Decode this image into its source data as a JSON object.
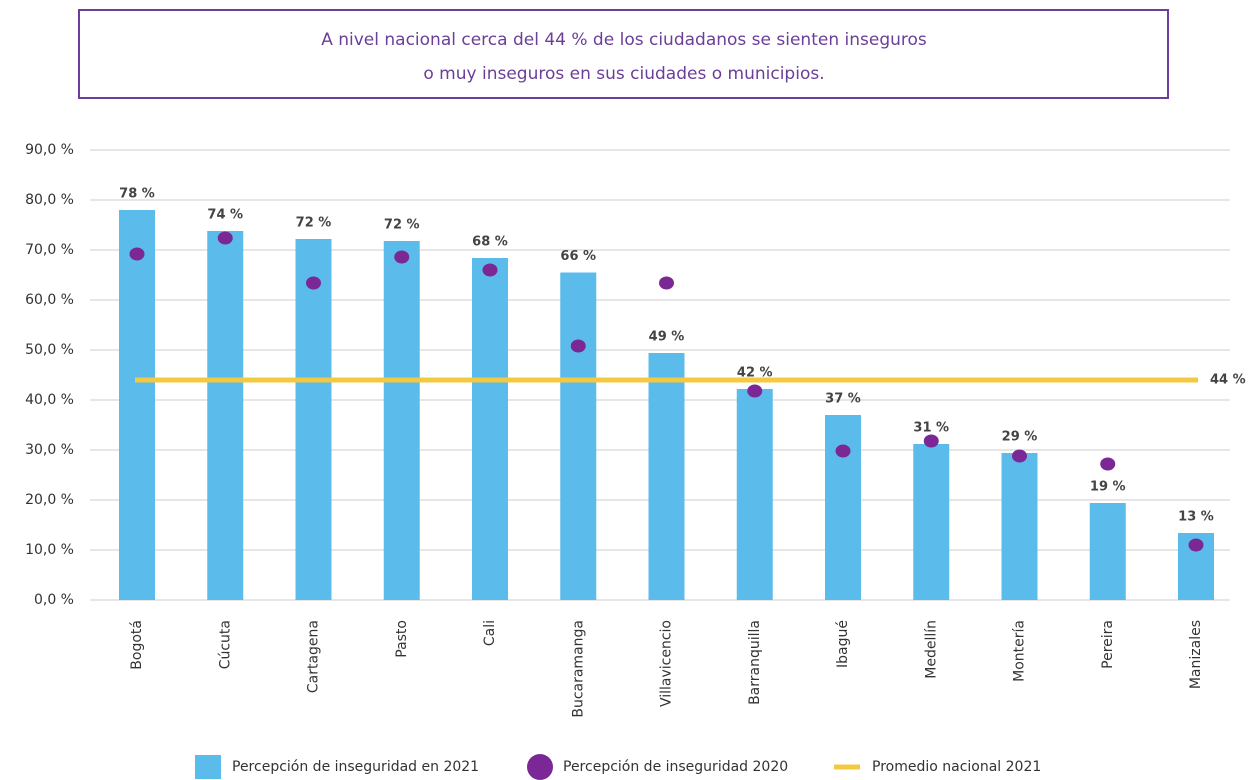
{
  "chart_data": {
    "type": "bar",
    "title": [
      "A nivel nacional cerca del 44 % de los ciudadanos se sienten inseguros",
      "o muy inseguros en sus ciudades o municipios."
    ],
    "categories": [
      "Bogotá",
      "Cúcuta",
      "Cartagena",
      "Pasto",
      "Cali",
      "Bucaramanga",
      "Villavicencio",
      "Barranquilla",
      "Ibagué",
      "Medellín",
      "Montería",
      "Pereira",
      "Manizales"
    ],
    "series": [
      {
        "name": "Percepción de inseguridad en 2021",
        "color": "#5bbcec",
        "values": [
          78,
          73.8,
          72.2,
          71.8,
          68.4,
          65.5,
          49.4,
          42.2,
          37,
          31.2,
          29.4,
          19.4,
          13.4
        ],
        "value_labels": [
          "78 %",
          "74 %",
          "72 %",
          "72 %",
          "68 %",
          "66 %",
          "49 %",
          "42 %",
          "37 %",
          "31 %",
          "29 %",
          "19 %",
          "13 %"
        ]
      },
      {
        "name": "Percepción de inseguridad 2020",
        "color": "#7b2795",
        "values": [
          69.2,
          72.4,
          63.4,
          68.6,
          66,
          50.8,
          63.4,
          41.8,
          29.8,
          31.8,
          28.8,
          27.2,
          11
        ]
      }
    ],
    "average": {
      "name": "Promedio nacional 2021",
      "color": "#f5c842",
      "value": 44,
      "label": "44 %"
    },
    "ylim": [
      0,
      90
    ],
    "yticks": [
      {
        "value": 0,
        "label": "0,0 %"
      },
      {
        "value": 10,
        "label": "10,0 %"
      },
      {
        "value": 20,
        "label": "20,0 %"
      },
      {
        "value": 30,
        "label": "30,0 %"
      },
      {
        "value": 40,
        "label": "40,0 %"
      },
      {
        "value": 50,
        "label": "50,0 %"
      },
      {
        "value": 60,
        "label": "60,0 %"
      },
      {
        "value": 70,
        "label": "70,0 %"
      },
      {
        "value": 80,
        "label": "80,0 %"
      },
      {
        "value": 90,
        "label": "90,0 %"
      }
    ],
    "grid": true
  }
}
